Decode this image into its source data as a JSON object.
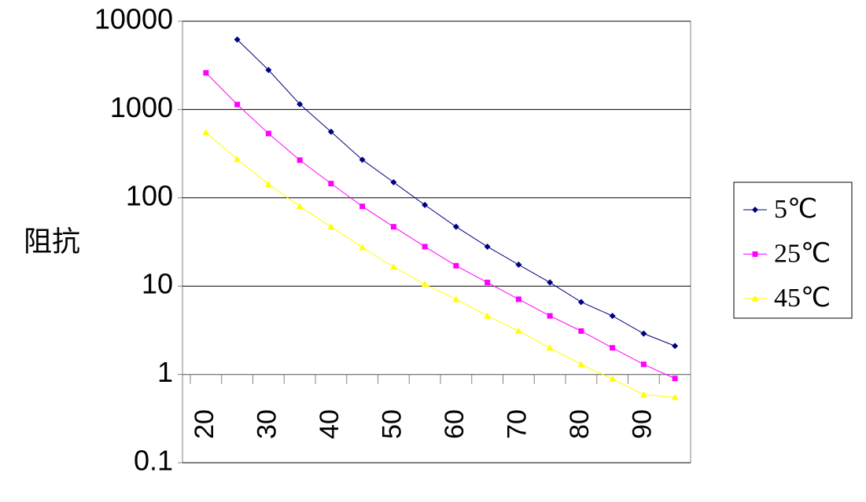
{
  "chart_data": {
    "type": "line",
    "ylabel": "阻抗",
    "categories": [
      "20",
      null,
      "30",
      null,
      "40",
      null,
      "50",
      null,
      "60",
      null,
      "70",
      null,
      "80",
      null,
      "90",
      null
    ],
    "series": [
      {
        "name": "5℃",
        "color": "#000080",
        "marker": "diamond",
        "values": [
          null,
          6200,
          2800,
          1150,
          560,
          270,
          150,
          83,
          47,
          28,
          17.5,
          11,
          6.6,
          4.6,
          2.9,
          2.1
        ]
      },
      {
        "name": "25℃",
        "color": "#ff00ff",
        "marker": "square",
        "values": [
          2600,
          1140,
          535,
          267,
          145,
          80,
          47,
          28,
          17,
          11,
          7.1,
          4.6,
          3.1,
          2.0,
          1.3,
          0.9
        ]
      },
      {
        "name": "45℃",
        "color": "#ffff00",
        "marker": "triangle",
        "values": [
          550,
          273,
          142,
          80,
          47,
          27.5,
          16.5,
          10.5,
          7.1,
          4.6,
          3.1,
          2.0,
          1.3,
          0.89,
          0.59,
          0.55
        ]
      }
    ],
    "ylim": [
      0.1,
      10000
    ],
    "yticks": [
      0.1,
      1,
      10,
      100,
      1000,
      10000
    ],
    "log_y": true,
    "x_axis_crosses": 1,
    "grid": true,
    "legend": "right"
  }
}
